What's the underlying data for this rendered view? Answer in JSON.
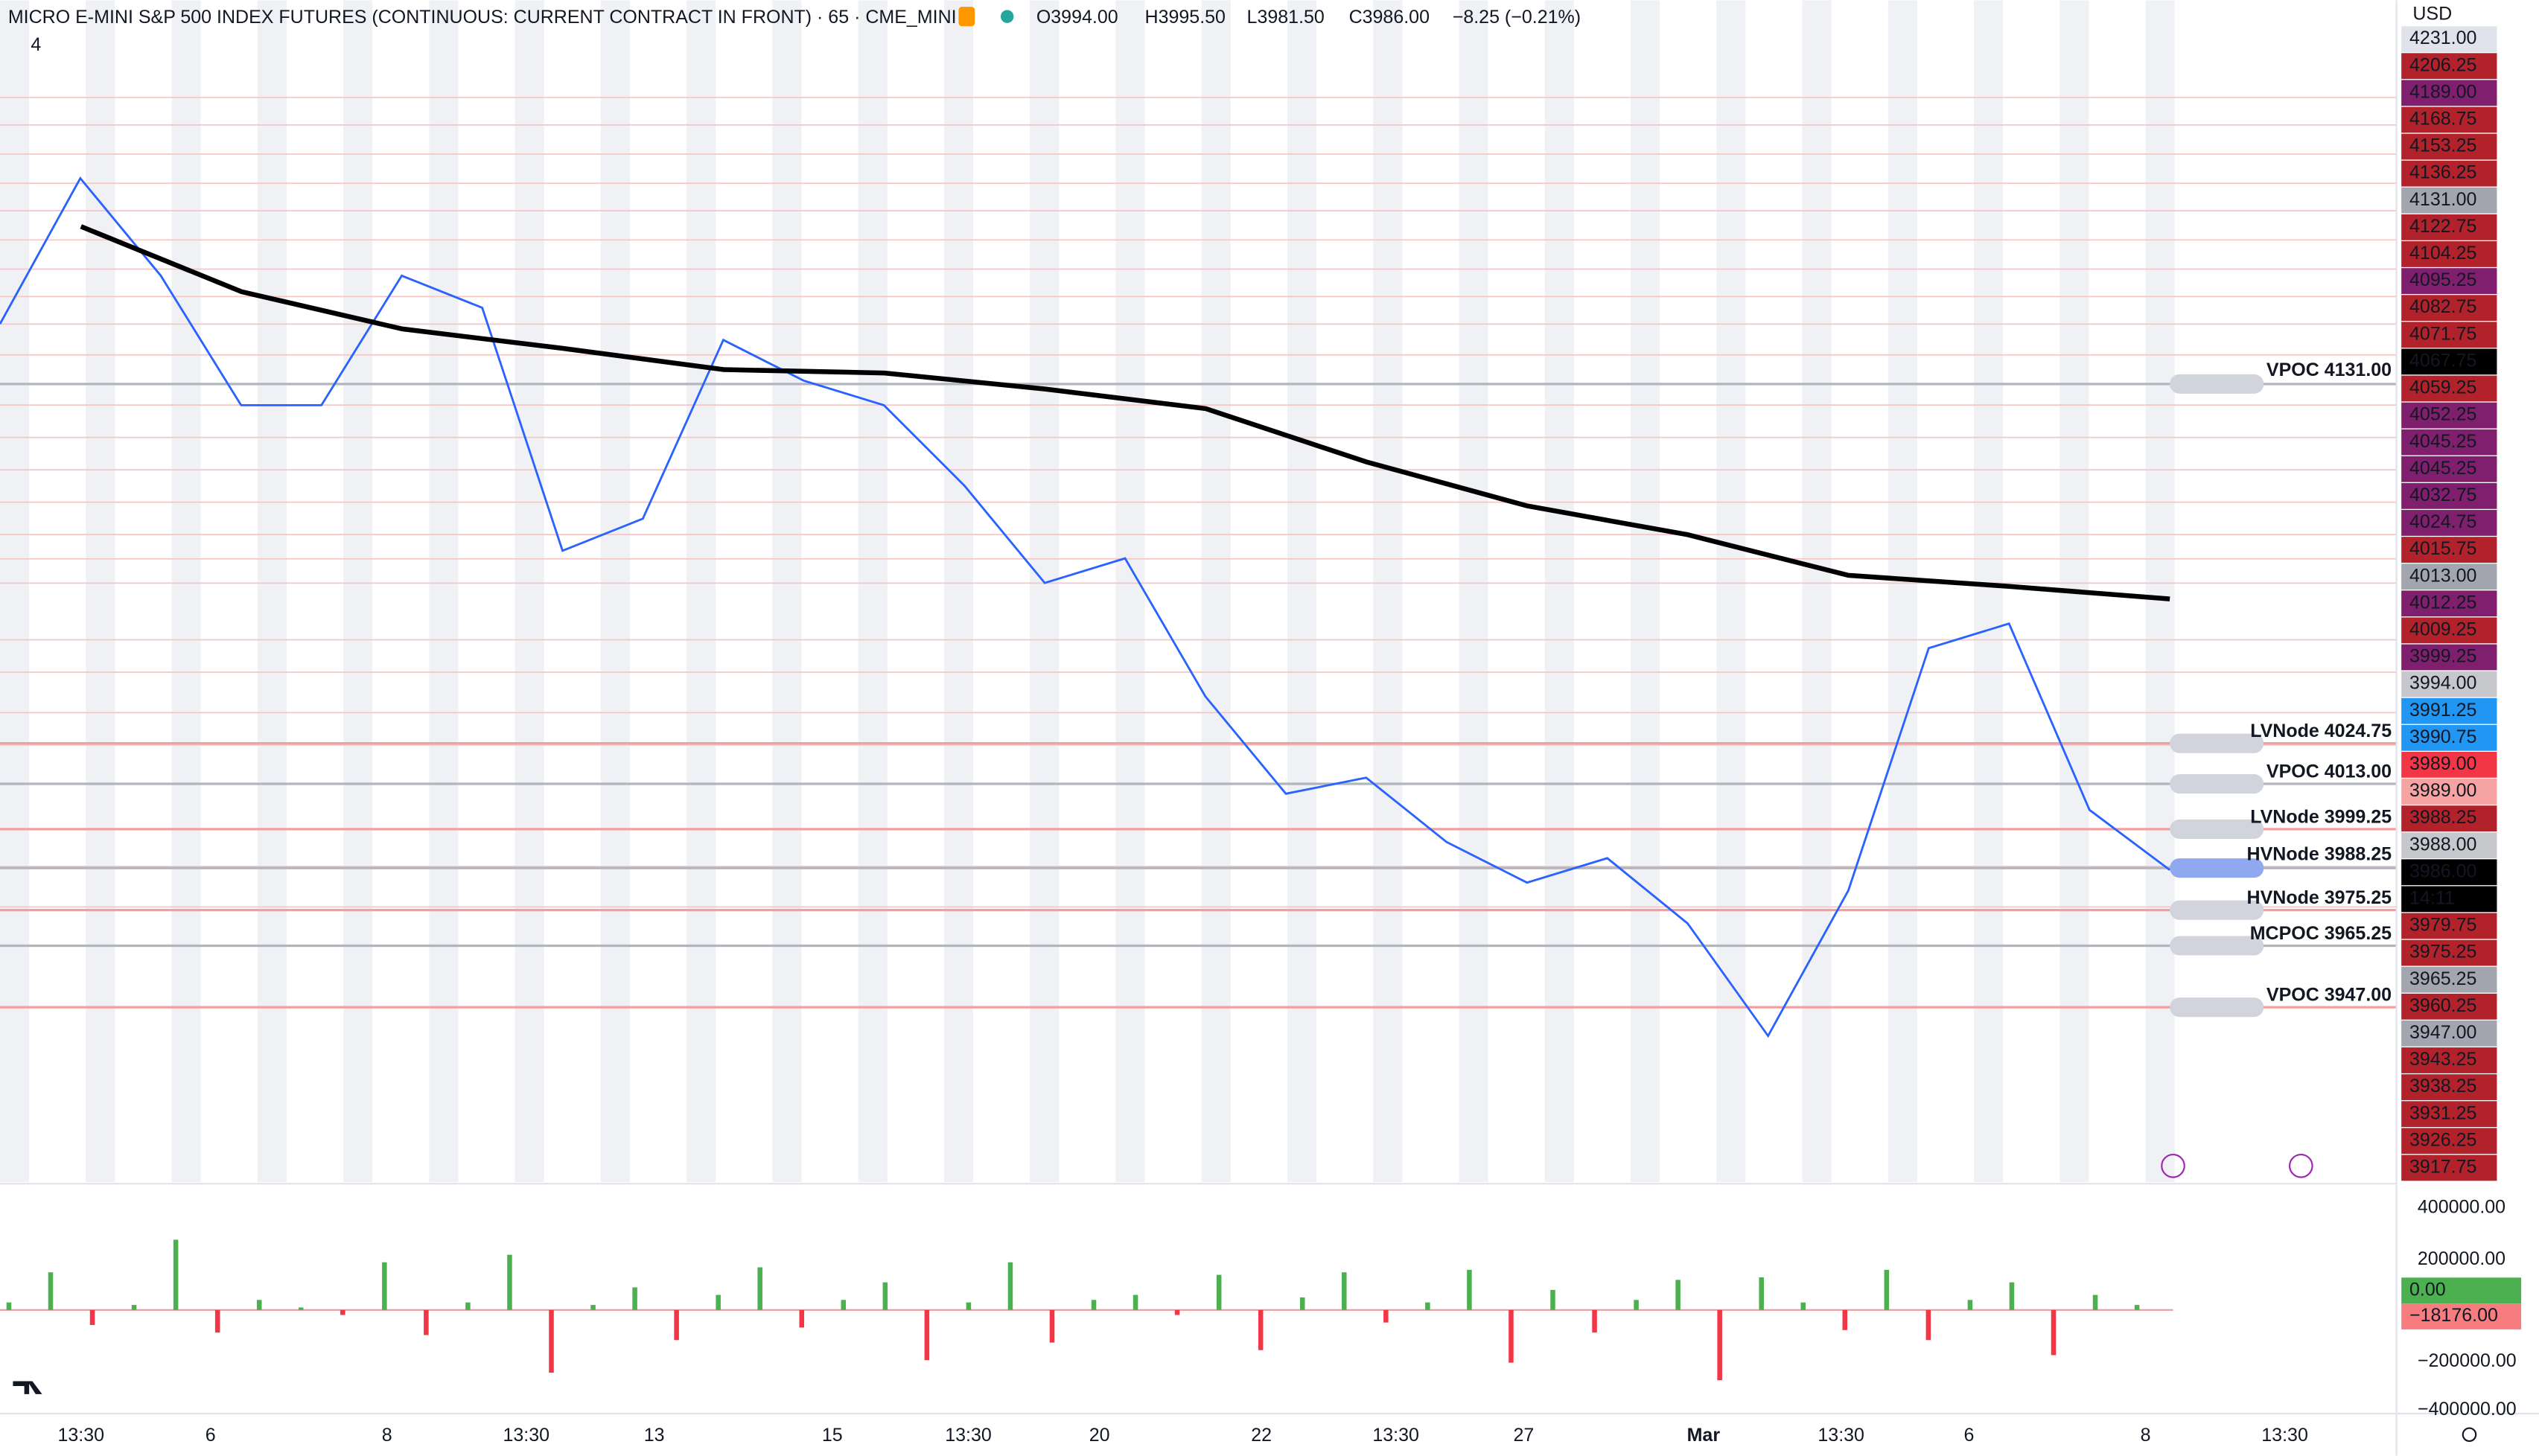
{
  "header": {
    "title": "MICRO E-MINI S&P 500 INDEX FUTURES (CONTINUOUS: CURRENT CONTRACT IN FRONT) · 65 · CME_MINI",
    "ohlc": [
      "O3994.00",
      "H3995.50",
      "L3981.50",
      "C3986.00"
    ],
    "change": "−8.25 (−0.21%)",
    "indicator_count": "4"
  },
  "axis": {
    "currency": "USD"
  },
  "price_labels": [
    {
      "text": "4231.00",
      "bg": "#e0e3eb",
      "fg": "#9598a1"
    },
    {
      "text": "4206.25",
      "bg": "#b2222a",
      "fg": "#ffffff"
    },
    {
      "text": "4189.00",
      "bg": "#801f6e",
      "fg": "#ffffff"
    },
    {
      "text": "4168.75",
      "bg": "#b2222a",
      "fg": "#ffffff"
    },
    {
      "text": "4153.25",
      "bg": "#b2222a",
      "fg": "#ffffff"
    },
    {
      "text": "4136.25",
      "bg": "#b2222a",
      "fg": "#ffffff"
    },
    {
      "text": "4131.00",
      "bg": "#a3a6af",
      "fg": "#131722"
    },
    {
      "text": "4122.75",
      "bg": "#b2222a",
      "fg": "#ffffff"
    },
    {
      "text": "4104.25",
      "bg": "#b2222a",
      "fg": "#ffffff"
    },
    {
      "text": "4095.25",
      "bg": "#801f6e",
      "fg": "#ffffff"
    },
    {
      "text": "4082.75",
      "bg": "#b2222a",
      "fg": "#ffffff"
    },
    {
      "text": "4071.75",
      "bg": "#b2222a",
      "fg": "#ffffff"
    },
    {
      "text": "4067.75",
      "bg": "#000000",
      "fg": "#ffffff"
    },
    {
      "text": "4059.25",
      "bg": "#b2222a",
      "fg": "#ffffff"
    },
    {
      "text": "4052.25",
      "bg": "#801f6e",
      "fg": "#ffffff"
    },
    {
      "text": "4045.25",
      "bg": "#801f6e",
      "fg": "#ffffff"
    },
    {
      "text": "4045.25",
      "bg": "#801f6e",
      "fg": "#ffffff"
    },
    {
      "text": "4032.75",
      "bg": "#801f6e",
      "fg": "#ffffff"
    },
    {
      "text": "4024.75",
      "bg": "#801f6e",
      "fg": "#ffffff"
    },
    {
      "text": "4015.75",
      "bg": "#b2222a",
      "fg": "#ffffff"
    },
    {
      "text": "4013.00",
      "bg": "#a3a6af",
      "fg": "#131722"
    },
    {
      "text": "4012.25",
      "bg": "#801f6e",
      "fg": "#ffffff"
    },
    {
      "text": "4009.25",
      "bg": "#b2222a",
      "fg": "#ffffff"
    },
    {
      "text": "3999.25",
      "bg": "#801f6e",
      "fg": "#ffffff"
    },
    {
      "text": "3994.00",
      "bg": "#c7c8cc",
      "fg": "#131722"
    },
    {
      "text": "3991.25",
      "bg": "#2196f3",
      "fg": "#ffffff"
    },
    {
      "text": "3990.75",
      "bg": "#2196f3",
      "fg": "#ffffff"
    },
    {
      "text": "3989.00",
      "bg": "#f23645",
      "fg": "#ffffff"
    },
    {
      "text": "3989.00",
      "bg": "#f5a3a3",
      "fg": "#131722"
    },
    {
      "text": "3988.25",
      "bg": "#b2222a",
      "fg": "#ffffff"
    },
    {
      "text": "3988.00",
      "bg": "#c7c8cc",
      "fg": "#131722"
    },
    {
      "text": "3986.00",
      "bg": "#000000",
      "fg": "#ffffff"
    },
    {
      "text": "14:11",
      "bg": "#000000",
      "fg": "#ffffff"
    },
    {
      "text": "3979.75",
      "bg": "#b2222a",
      "fg": "#ffffff"
    },
    {
      "text": "3975.25",
      "bg": "#b2222a",
      "fg": "#ffffff"
    },
    {
      "text": "3965.25",
      "bg": "#a3a6af",
      "fg": "#131722"
    },
    {
      "text": "3960.25",
      "bg": "#b2222a",
      "fg": "#ffffff"
    },
    {
      "text": "3947.00",
      "bg": "#a3a6af",
      "fg": "#131722"
    },
    {
      "text": "3943.25",
      "bg": "#b2222a",
      "fg": "#ffffff"
    },
    {
      "text": "3938.25",
      "bg": "#b2222a",
      "fg": "#ffffff"
    },
    {
      "text": "3931.25",
      "bg": "#b2222a",
      "fg": "#ffffff"
    },
    {
      "text": "3926.25",
      "bg": "#b2222a",
      "fg": "#ffffff"
    },
    {
      "text": "3917.75",
      "bg": "#b2222a",
      "fg": "#ffffff"
    }
  ],
  "annotations": [
    {
      "text": "VPOC 4131.00",
      "color": "#9598a1"
    },
    {
      "text": "LVNode 4024.75",
      "color": "#9c27b0"
    },
    {
      "text": "VPOC 4013.00",
      "color": "#9598a1"
    },
    {
      "text": "LVNode 3999.25",
      "color": "#9c27b0"
    },
    {
      "text": "HVNode 3988.25",
      "color": "#b2222a"
    },
    {
      "text": "HVNode 3975.25",
      "color": "#b2222a"
    },
    {
      "text": "MCPOC 3965.25",
      "color": "#9598a1"
    },
    {
      "text": "VPOC 3947.00",
      "color": "#9598a1"
    }
  ],
  "closes": [
    4148.75,
    4191.75,
    4163,
    4124.75,
    4124.75,
    4163,
    4153.5,
    4081.75,
    4091.25,
    4144,
    4132,
    4124.75,
    4101,
    4072.25,
    4079.5,
    4038.75,
    4010,
    4014.75,
    3995.75,
    3983.75,
    3991,
    3971.75,
    3938.5,
    3981.5,
    4053,
    4060.25,
    4005.25,
    3987.5
  ],
  "vwap": [
    4177.5,
    4158.25,
    4147.25,
    4141.5,
    4135.25,
    4134.25,
    4129.5,
    4123.75,
    4108,
    4095,
    4086.5,
    4074.5,
    4071.25,
    4067.5
  ],
  "volume": [
    30000,
    150000,
    -60000,
    20000,
    280000,
    -90000,
    40000,
    10000,
    -20000,
    190000,
    -100000,
    30000,
    220000,
    -250000,
    20000,
    90000,
    -120000,
    60000,
    170000,
    -70000,
    40000,
    110000,
    -200000,
    30000,
    190000,
    -130000,
    40000,
    60000,
    -20000,
    140000,
    -160000,
    50000,
    150000,
    -50000,
    30000,
    160000,
    -210000,
    80000,
    -90000,
    40000,
    120000,
    -280000,
    130000,
    30000,
    -80000,
    160000,
    -120000,
    40000,
    110000,
    -180000,
    60000,
    20000
  ],
  "volume_axis": [
    "400000.00",
    "200000.00",
    "0.00",
    "−18176.00",
    "−200000.00",
    "−400000.00"
  ],
  "time_axis": [
    "13:30",
    "6",
    "8",
    "13:30",
    "13",
    "15",
    "13:30",
    "20",
    "22",
    "13:30",
    "27",
    "Mar",
    "13:30",
    "6",
    "8",
    "13:30"
  ]
}
